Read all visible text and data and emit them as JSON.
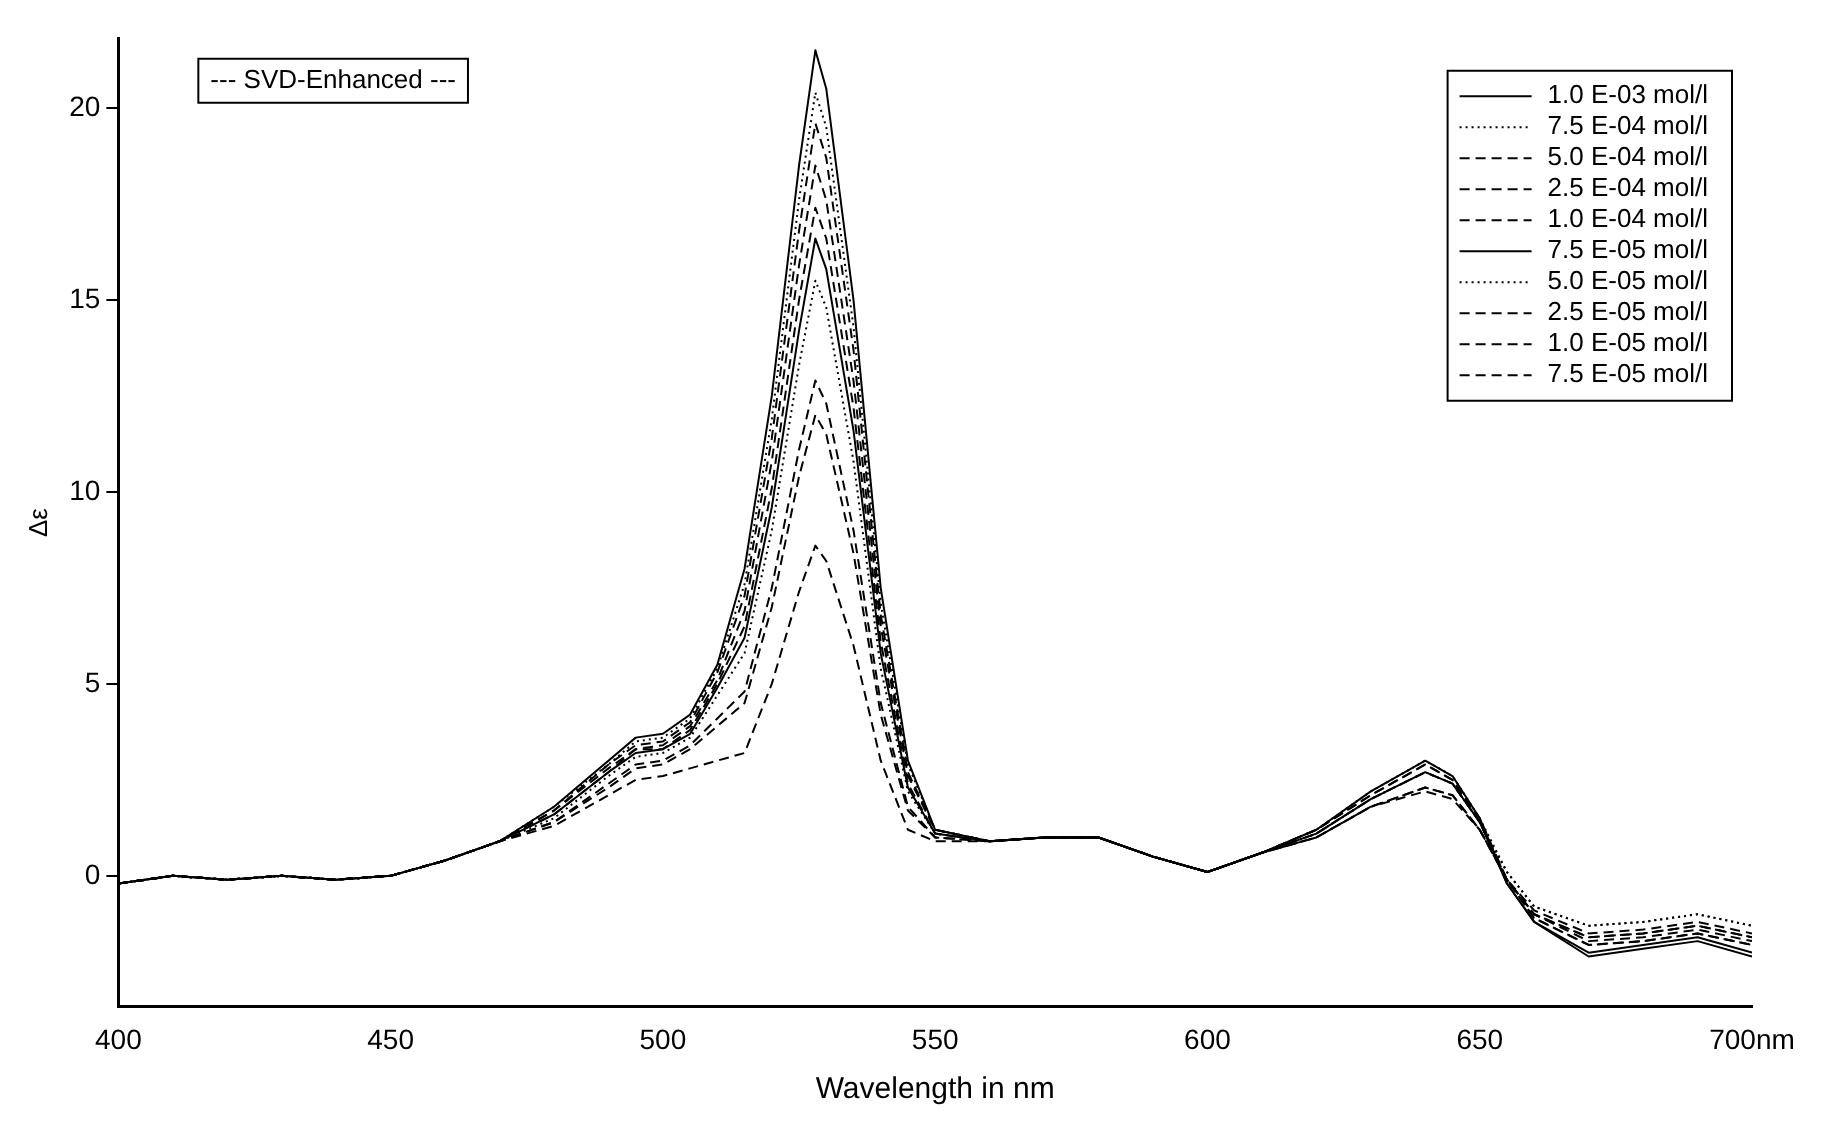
{
  "chart_data": {
    "type": "line",
    "xlabel": "Wavelength in nm",
    "ylabel": "Δε",
    "annotations": [
      "--- SVD-Enhanced ---"
    ],
    "x": [
      400,
      410,
      420,
      430,
      440,
      450,
      460,
      470,
      480,
      490,
      495,
      500,
      505,
      510,
      515,
      520,
      525,
      528,
      530,
      535,
      540,
      545,
      550,
      560,
      570,
      580,
      590,
      600,
      610,
      620,
      630,
      640,
      645,
      650,
      655,
      660,
      670,
      680,
      690,
      700
    ],
    "xlim": [
      400,
      700
    ],
    "xticks": [
      400,
      450,
      500,
      550,
      600,
      650,
      {
        "value": 700,
        "label": "700nm"
      }
    ],
    "ylim": [
      -3.4,
      21.8
    ],
    "yticks": [
      0,
      5,
      10,
      15,
      20
    ],
    "grid": false,
    "legend": "top right",
    "marker": "none",
    "series": [
      {
        "name": "1.0 E-03 mol/l",
        "color": "#000000",
        "line_style": "solid",
        "values": [
          -0.2,
          0,
          -0.1,
          0,
          -0.1,
          0,
          0.4,
          0.9,
          1.8,
          3.0,
          3.6,
          3.7,
          4.2,
          5.5,
          8.0,
          12.5,
          18.5,
          21.5,
          20.5,
          15.0,
          7.5,
          3.0,
          1.2,
          0.9,
          1.0,
          1.0,
          0.5,
          0.1,
          0.6,
          1.2,
          2.2,
          3.0,
          2.6,
          1.5,
          -0.2,
          -1.2,
          -2.0,
          -1.8,
          -1.6,
          -2.0
        ]
      },
      {
        "name": "7.5 E-04 mol/l",
        "color": "#000000",
        "line_style": "dotted",
        "values": [
          -0.2,
          0,
          -0.1,
          0,
          -0.1,
          0,
          0.4,
          0.9,
          1.8,
          2.9,
          3.5,
          3.6,
          4.1,
          5.4,
          7.6,
          11.9,
          17.6,
          20.4,
          19.5,
          14.3,
          7.1,
          2.9,
          1.2,
          0.9,
          1.0,
          1.0,
          0.5,
          0.1,
          0.6,
          1.2,
          2.2,
          3.0,
          2.6,
          1.5,
          0.1,
          -0.8,
          -1.3,
          -1.2,
          -1.0,
          -1.3
        ]
      },
      {
        "name": "5.0 E-04 mol/l",
        "color": "#000000",
        "line_style": "dashed",
        "values": [
          -0.2,
          0,
          -0.1,
          0,
          -0.1,
          0,
          0.4,
          0.9,
          1.7,
          2.9,
          3.4,
          3.5,
          4.0,
          5.3,
          7.3,
          11.4,
          16.8,
          19.6,
          18.7,
          13.7,
          6.8,
          2.7,
          1.2,
          0.9,
          1.0,
          1.0,
          0.5,
          0.1,
          0.6,
          1.2,
          2.1,
          2.9,
          2.5,
          1.5,
          -0.1,
          -1.1,
          -1.8,
          -1.7,
          -1.5,
          -1.8
        ]
      },
      {
        "name": "2.5 E-04 mol/l",
        "color": "#000000",
        "line_style": "dashed",
        "values": [
          -0.2,
          0,
          -0.1,
          0,
          -0.1,
          0,
          0.4,
          0.9,
          1.7,
          2.8,
          3.3,
          3.4,
          3.9,
          5.1,
          6.9,
          10.8,
          15.9,
          18.5,
          17.6,
          12.9,
          6.5,
          2.6,
          1.2,
          0.9,
          1.0,
          1.0,
          0.5,
          0.1,
          0.6,
          1.2,
          2.1,
          2.9,
          2.5,
          1.4,
          -0.1,
          -1.1,
          -1.8,
          -1.7,
          -1.5,
          -1.8
        ]
      },
      {
        "name": "1.0 E-04 mol/l",
        "color": "#000000",
        "line_style": "dashed",
        "values": [
          -0.2,
          0,
          -0.1,
          0,
          -0.1,
          0,
          0.4,
          0.9,
          1.6,
          2.7,
          3.3,
          3.3,
          3.8,
          5.0,
          6.5,
          10.1,
          15.0,
          17.4,
          16.6,
          12.2,
          6.1,
          2.4,
          1.1,
          0.9,
          1.0,
          1.0,
          0.5,
          0.1,
          0.6,
          1.1,
          2.0,
          2.7,
          2.4,
          1.4,
          -0.1,
          -1.0,
          -1.7,
          -1.6,
          -1.4,
          -1.7
        ]
      },
      {
        "name": "7.5 E-05 mol/l",
        "color": "#000000",
        "line_style": "solid",
        "values": [
          -0.2,
          0,
          -0.1,
          0,
          -0.1,
          0,
          0.4,
          0.9,
          1.6,
          2.7,
          3.2,
          3.3,
          3.7,
          4.9,
          6.2,
          9.6,
          14.2,
          16.6,
          15.8,
          11.6,
          5.8,
          2.3,
          1.1,
          0.9,
          1.0,
          1.0,
          0.5,
          0.1,
          0.6,
          1.1,
          2.0,
          2.7,
          2.4,
          1.4,
          -0.2,
          -1.2,
          -2.1,
          -1.9,
          -1.7,
          -2.1
        ]
      },
      {
        "name": "5.0 E-05 mol/l",
        "color": "#000000",
        "line_style": "dotted",
        "values": [
          -0.2,
          0,
          -0.1,
          0,
          -0.1,
          0,
          0.4,
          0.9,
          1.5,
          2.6,
          3.1,
          3.2,
          3.6,
          4.7,
          5.8,
          9.0,
          13.3,
          15.5,
          14.8,
          10.8,
          5.4,
          2.2,
          1.1,
          0.9,
          1.0,
          1.0,
          0.5,
          0.1,
          0.6,
          1.1,
          2.0,
          2.7,
          2.4,
          1.4,
          0.1,
          -0.8,
          -1.3,
          -1.2,
          -1.0,
          -1.3
        ]
      },
      {
        "name": "2.5 E-05 mol/l",
        "color": "#000000",
        "line_style": "dashed",
        "values": [
          -0.2,
          0,
          -0.1,
          0,
          -0.1,
          0,
          0.4,
          0.9,
          1.4,
          2.4,
          2.9,
          3.0,
          3.4,
          4.1,
          4.8,
          7.5,
          11.1,
          12.9,
          12.3,
          9.0,
          4.5,
          1.8,
          1.0,
          0.9,
          1.0,
          1.0,
          0.5,
          0.1,
          0.6,
          1.0,
          1.8,
          2.3,
          2.1,
          1.2,
          -0.1,
          -1.0,
          -1.6,
          -1.5,
          -1.3,
          -1.6
        ]
      },
      {
        "name": "1.0 E-05 mol/l",
        "color": "#000000",
        "line_style": "dashed",
        "values": [
          -0.2,
          0,
          -0.1,
          0,
          -0.1,
          0,
          0.4,
          0.9,
          1.4,
          2.3,
          2.8,
          2.9,
          3.3,
          3.9,
          4.5,
          7.0,
          10.4,
          12.0,
          11.5,
          8.4,
          4.2,
          1.7,
          1.0,
          0.9,
          1.0,
          1.0,
          0.5,
          0.1,
          0.6,
          1.0,
          1.8,
          2.3,
          2.1,
          1.2,
          -0.1,
          -1.0,
          -1.6,
          -1.5,
          -1.3,
          -1.6
        ]
      },
      {
        "name": "7.5 E-05 mol/l",
        "color": "#000000",
        "line_style": "dashed",
        "values": [
          -0.2,
          0,
          -0.1,
          0,
          -0.1,
          0,
          0.4,
          0.9,
          1.3,
          2.1,
          2.5,
          2.6,
          2.8,
          3.0,
          3.2,
          5.0,
          7.4,
          8.6,
          8.2,
          6.0,
          3.0,
          1.2,
          0.9,
          0.9,
          1.0,
          1.0,
          0.5,
          0.1,
          0.6,
          1.0,
          1.8,
          2.2,
          2.0,
          1.2,
          -0.1,
          -0.9,
          -1.5,
          -1.4,
          -1.2,
          -1.5
        ]
      }
    ]
  }
}
